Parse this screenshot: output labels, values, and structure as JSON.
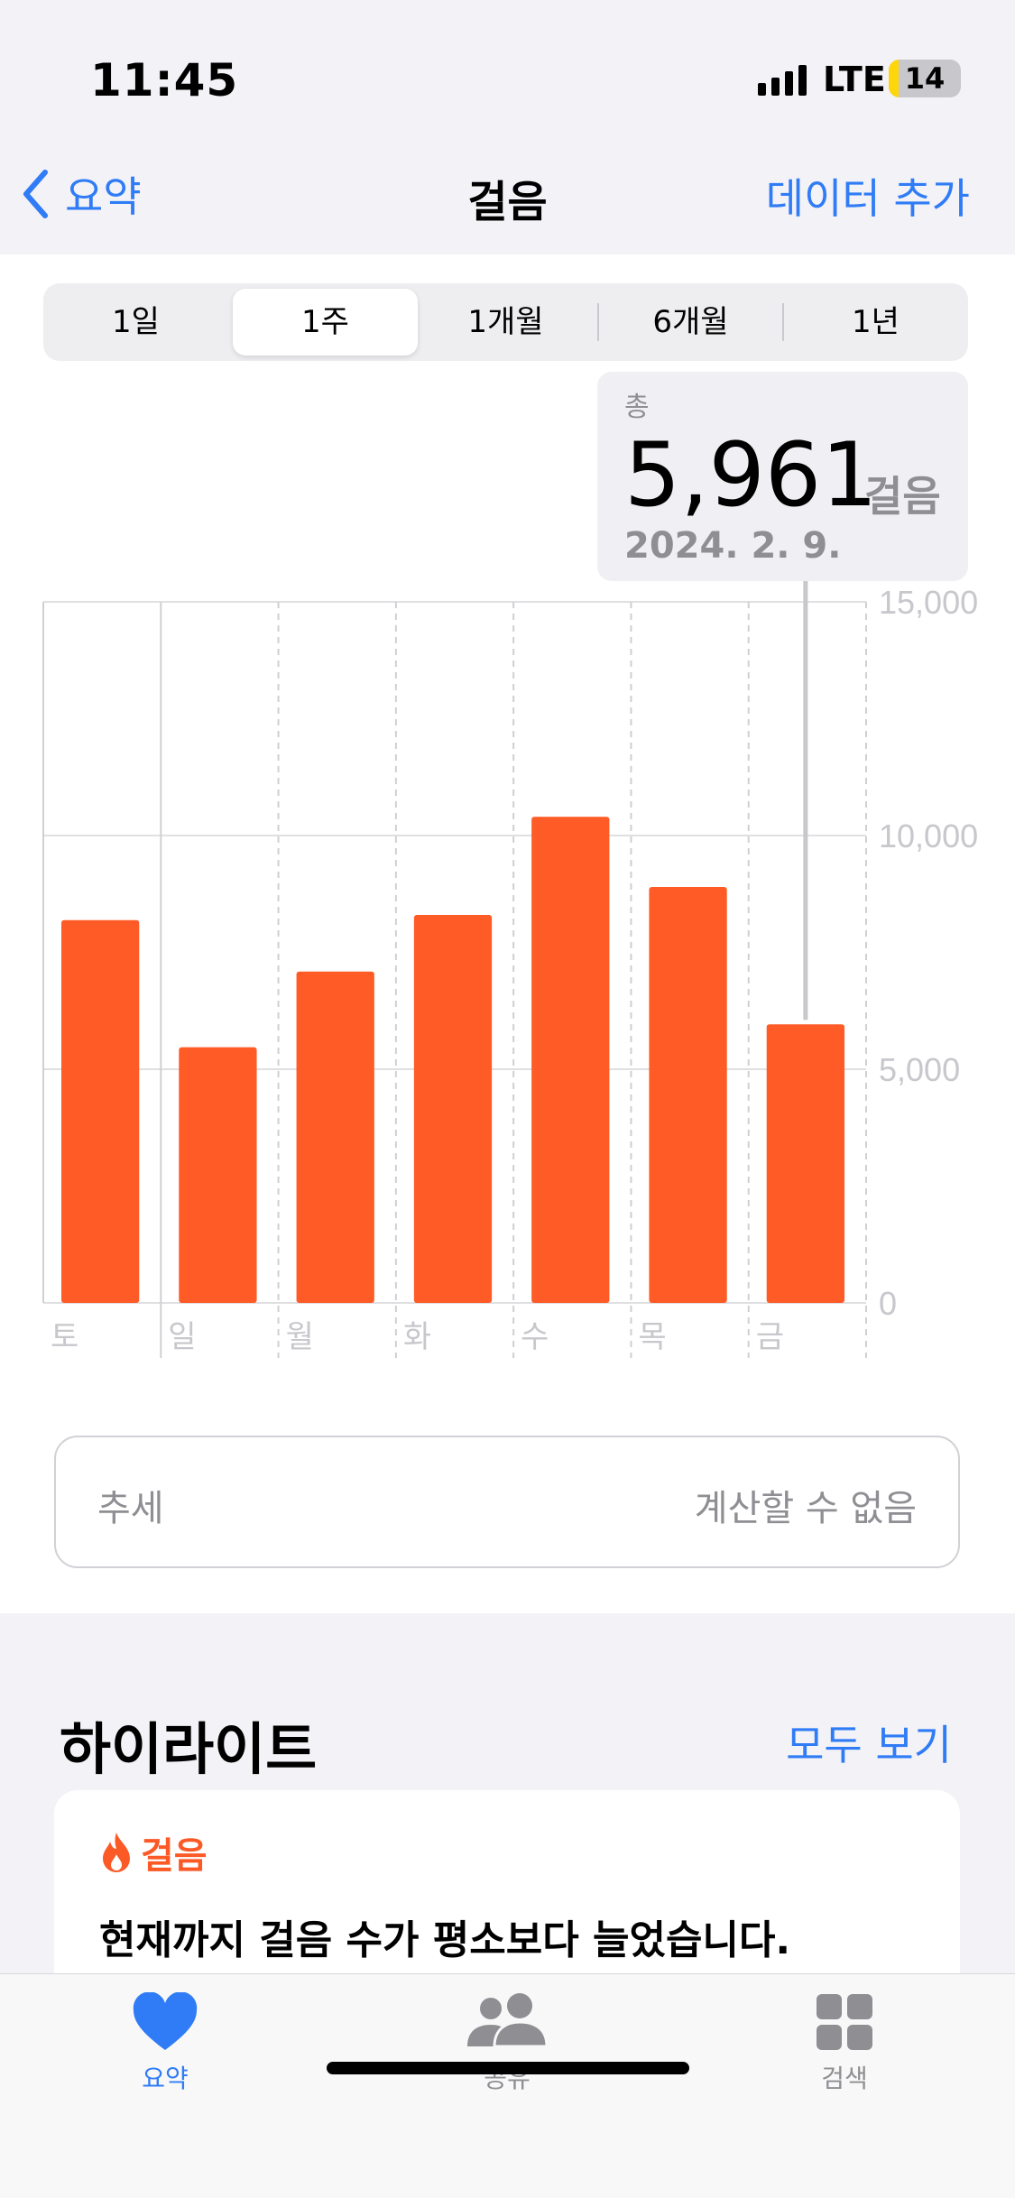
{
  "status": {
    "time": "11:45",
    "network": "LTE",
    "battery": "14",
    "battery_level": 0.14
  },
  "nav": {
    "back_label": "요약",
    "title": "걸음",
    "action_label": "데이터 추가"
  },
  "segments": {
    "items": [
      "1일",
      "1주",
      "1개월",
      "6개월",
      "1년"
    ],
    "selected": "1주"
  },
  "tooltip": {
    "label": "총",
    "value": "5,961",
    "unit": "걸음",
    "date": "2024. 2. 9."
  },
  "colors": {
    "accent": "#2f7cf6",
    "bar": "#fe5b27"
  },
  "chart_data": {
    "type": "bar",
    "categories": [
      "토",
      "일",
      "월",
      "화",
      "수",
      "목",
      "금"
    ],
    "values": [
      8190,
      5470,
      7090,
      8300,
      10400,
      8900,
      5961
    ],
    "selected_category": "금",
    "ylim": [
      0,
      15000
    ],
    "yticks": [
      "0",
      "5,000",
      "10,000",
      "15,000"
    ],
    "grid": true,
    "y_axis_side": "right"
  },
  "trend": {
    "label": "추세",
    "value": "계산할 수 없음"
  },
  "highlights": {
    "title": "하이라이트",
    "see_all": "모두 보기",
    "card": {
      "category": "걸음",
      "text": "현재까지 걸음 수가 평소보다 늘었습니다."
    }
  },
  "tabbar": {
    "items": [
      {
        "label": "요약",
        "icon": "heart-icon",
        "active": true
      },
      {
        "label": "공유",
        "icon": "people-icon",
        "active": false
      },
      {
        "label": "검색",
        "icon": "grid-icon",
        "active": false
      }
    ]
  }
}
